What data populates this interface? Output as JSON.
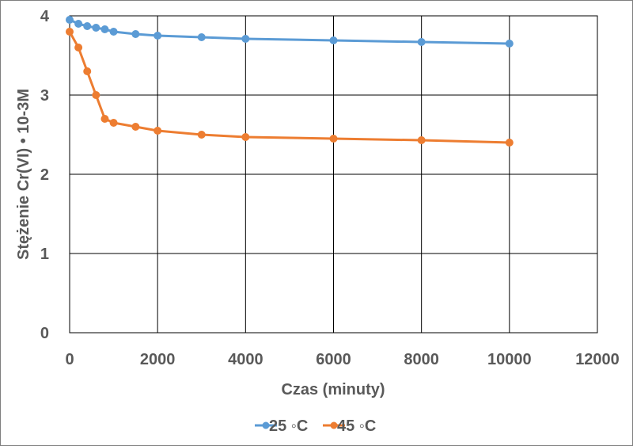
{
  "chart_data": {
    "type": "line",
    "title": "",
    "xlabel": "Czas (minuty)",
    "ylabel": "Stężenie Cr(VI) • 10-3M",
    "xlim": [
      0,
      12000
    ],
    "ylim": [
      0,
      4
    ],
    "xticks": [
      "0",
      "2000",
      "4000",
      "6000",
      "8000",
      "10000",
      "12000"
    ],
    "yticks": [
      "0",
      "1",
      "2",
      "3",
      "4"
    ],
    "grid": true,
    "legend_position": "bottom",
    "series": [
      {
        "name": "25 ◦C",
        "color": "#5b9bd5",
        "x": [
          0,
          200,
          400,
          600,
          800,
          1000,
          1500,
          2000,
          3000,
          4000,
          6000,
          8000,
          10000
        ],
        "y": [
          3.95,
          3.9,
          3.87,
          3.85,
          3.83,
          3.8,
          3.77,
          3.75,
          3.73,
          3.71,
          3.69,
          3.67,
          3.65
        ]
      },
      {
        "name": "45 ◦C",
        "color": "#ed7d31",
        "x": [
          0,
          200,
          400,
          600,
          800,
          1000,
          1500,
          2000,
          3000,
          4000,
          6000,
          8000,
          10000
        ],
        "y": [
          3.8,
          3.6,
          3.3,
          3.0,
          2.7,
          2.65,
          2.6,
          2.55,
          2.5,
          2.47,
          2.45,
          2.43,
          2.4
        ]
      }
    ]
  }
}
